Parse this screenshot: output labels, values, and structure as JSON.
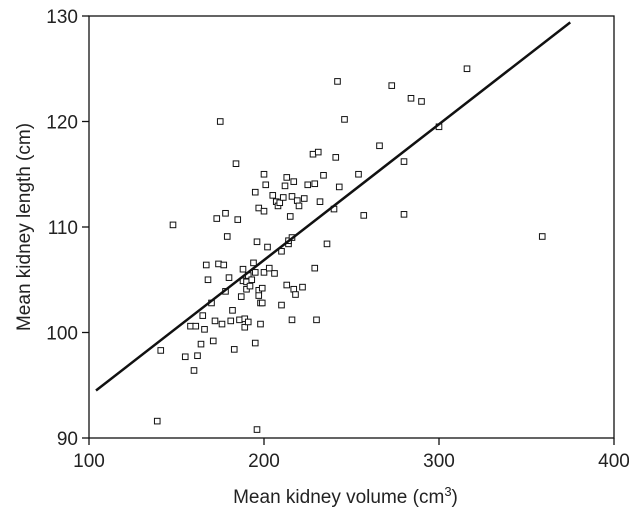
{
  "chart_data": {
    "type": "scatter",
    "title": "",
    "xlabel": "Mean kidney volume (cm",
    "xlabel_sup": "3",
    "xlabel_suffix": ")",
    "ylabel": "Mean kidney length (cm)",
    "xlim": [
      100,
      400
    ],
    "ylim": [
      90,
      130
    ],
    "xticks": [
      100,
      200,
      300,
      400
    ],
    "yticks": [
      90,
      100,
      110,
      120,
      130
    ],
    "grid": false,
    "legend": "none",
    "marker": "open-square",
    "trendline": {
      "type": "linear",
      "points": [
        [
          104,
          94.5
        ],
        [
          375,
          129.4
        ]
      ]
    },
    "points": [
      [
        139,
        91.6
      ],
      [
        141,
        98.3
      ],
      [
        148,
        110.2
      ],
      [
        155,
        97.7
      ],
      [
        158,
        100.6
      ],
      [
        160,
        96.4
      ],
      [
        161,
        100.6
      ],
      [
        162,
        97.8
      ],
      [
        164,
        98.9
      ],
      [
        165,
        101.6
      ],
      [
        166,
        100.3
      ],
      [
        167,
        106.4
      ],
      [
        168,
        105.0
      ],
      [
        170,
        102.8
      ],
      [
        171,
        99.2
      ],
      [
        172,
        101.1
      ],
      [
        173,
        110.8
      ],
      [
        174,
        106.5
      ],
      [
        175,
        120.0
      ],
      [
        176,
        100.8
      ],
      [
        177,
        106.4
      ],
      [
        178,
        111.3
      ],
      [
        178,
        103.9
      ],
      [
        179,
        109.1
      ],
      [
        180,
        105.2
      ],
      [
        181,
        101.1
      ],
      [
        182,
        102.1
      ],
      [
        183,
        98.4
      ],
      [
        184,
        116.0
      ],
      [
        185,
        110.7
      ],
      [
        186,
        101.2
      ],
      [
        187,
        103.4
      ],
      [
        188,
        106.0
      ],
      [
        188,
        104.9
      ],
      [
        189,
        100.5
      ],
      [
        189,
        101.3
      ],
      [
        190,
        104.8
      ],
      [
        190,
        104.1
      ],
      [
        191,
        105.4
      ],
      [
        191,
        101.0
      ],
      [
        192,
        104.4
      ],
      [
        193,
        105.0
      ],
      [
        194,
        106.6
      ],
      [
        195,
        113.3
      ],
      [
        195,
        99.0
      ],
      [
        195,
        105.7
      ],
      [
        196,
        108.6
      ],
      [
        196,
        90.8
      ],
      [
        197,
        104.0
      ],
      [
        197,
        103.5
      ],
      [
        197,
        111.8
      ],
      [
        198,
        102.8
      ],
      [
        198,
        100.8
      ],
      [
        199,
        102.8
      ],
      [
        199,
        104.2
      ],
      [
        200,
        115.0
      ],
      [
        200,
        105.7
      ],
      [
        200,
        111.5
      ],
      [
        201,
        114.0
      ],
      [
        202,
        108.1
      ],
      [
        203,
        106.1
      ],
      [
        205,
        113.0
      ],
      [
        206,
        105.6
      ],
      [
        207,
        112.4
      ],
      [
        208,
        112.0
      ],
      [
        209,
        112.3
      ],
      [
        210,
        107.7
      ],
      [
        210,
        102.6
      ],
      [
        211,
        112.8
      ],
      [
        212,
        113.9
      ],
      [
        213,
        104.5
      ],
      [
        213,
        114.7
      ],
      [
        214,
        108.4
      ],
      [
        214,
        108.7
      ],
      [
        215,
        111.0
      ],
      [
        216,
        112.9
      ],
      [
        216,
        109.0
      ],
      [
        216,
        101.2
      ],
      [
        217,
        114.3
      ],
      [
        217,
        104.1
      ],
      [
        218,
        103.6
      ],
      [
        219,
        112.5
      ],
      [
        220,
        112.0
      ],
      [
        222,
        104.3
      ],
      [
        223,
        112.7
      ],
      [
        225,
        114.0
      ],
      [
        228,
        116.9
      ],
      [
        229,
        114.1
      ],
      [
        229,
        106.1
      ],
      [
        230,
        101.2
      ],
      [
        231,
        117.1
      ],
      [
        232,
        112.4
      ],
      [
        234,
        114.9
      ],
      [
        236,
        108.4
      ],
      [
        240,
        111.7
      ],
      [
        241,
        116.6
      ],
      [
        242,
        123.8
      ],
      [
        243,
        113.8
      ],
      [
        246,
        120.2
      ],
      [
        254,
        115.0
      ],
      [
        257,
        111.1
      ],
      [
        266,
        117.7
      ],
      [
        273,
        123.4
      ],
      [
        280,
        116.2
      ],
      [
        280,
        111.2
      ],
      [
        284,
        122.2
      ],
      [
        290,
        121.9
      ],
      [
        300,
        119.5
      ],
      [
        316,
        125.0
      ],
      [
        359,
        109.1
      ]
    ]
  }
}
